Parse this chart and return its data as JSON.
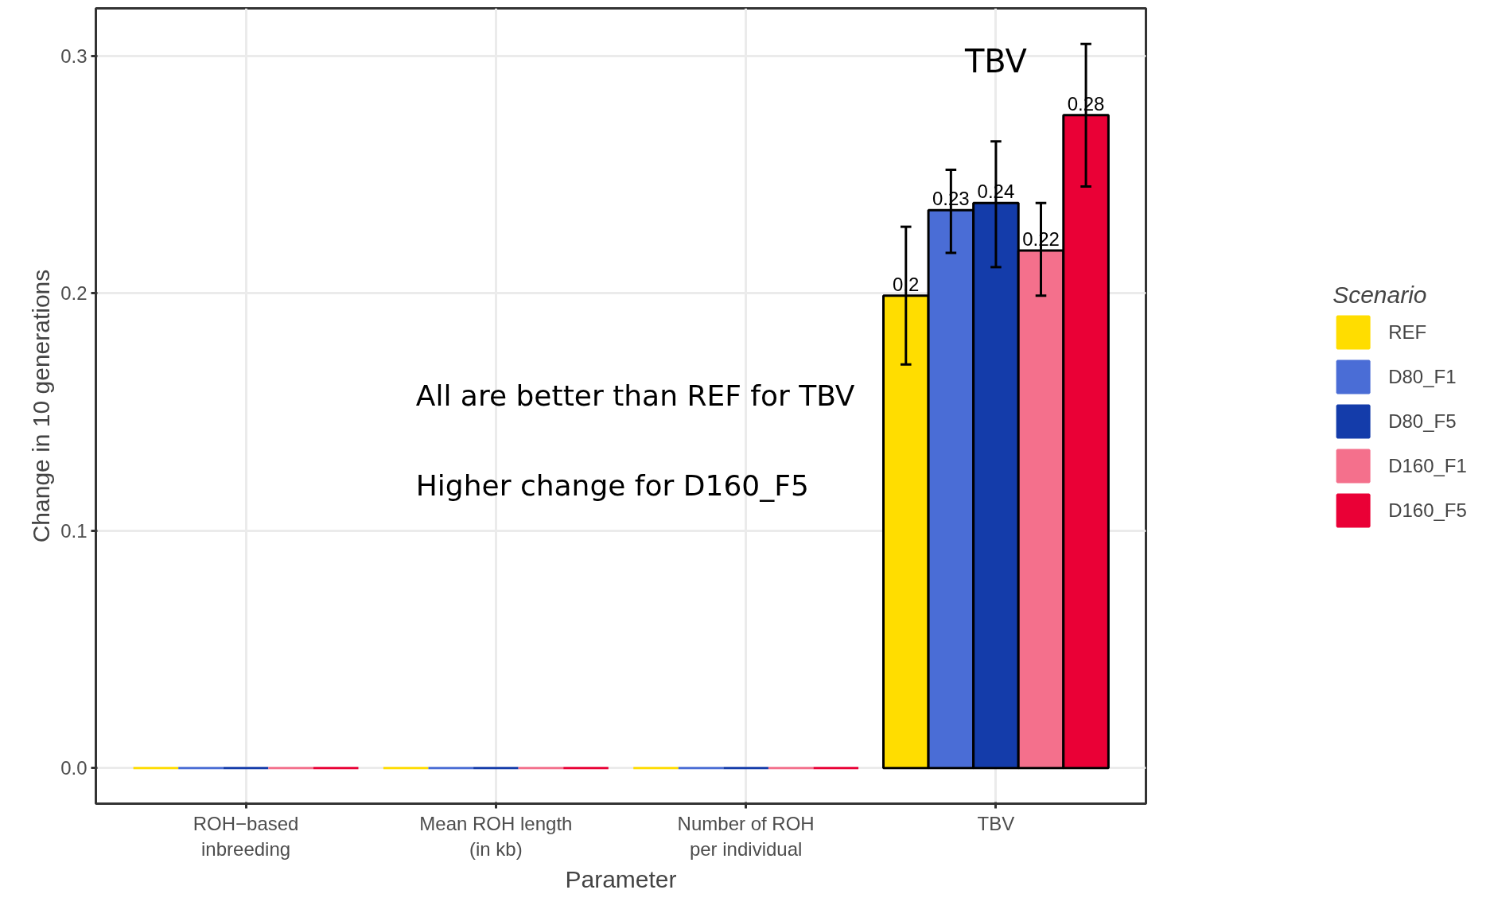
{
  "chart_data": {
    "type": "bar",
    "xlabel": "Parameter",
    "ylabel": "Change in 10 generations",
    "legend_title": "Scenario",
    "categories": [
      "ROH−based\ninbreeding",
      "Mean ROH length\n(in kb)",
      "Number of ROH\nper individual",
      "TBV"
    ],
    "series": [
      {
        "name": "REF",
        "color": "#ffdd00",
        "values": [
          0,
          0,
          0,
          0.199
        ],
        "errors": [
          null,
          null,
          null,
          [
            0.17,
            0.228
          ]
        ],
        "value_labels": [
          null,
          null,
          null,
          "0.2"
        ]
      },
      {
        "name": "D80_F1",
        "color": "#4a6dd6",
        "values": [
          0,
          0,
          0,
          0.235
        ],
        "errors": [
          null,
          null,
          null,
          [
            0.217,
            0.252
          ]
        ],
        "value_labels": [
          null,
          null,
          null,
          "0.23"
        ]
      },
      {
        "name": "D80_F5",
        "color": "#143caa",
        "values": [
          0,
          0,
          0,
          0.238
        ],
        "errors": [
          null,
          null,
          null,
          [
            0.211,
            0.264
          ]
        ],
        "value_labels": [
          null,
          null,
          null,
          "0.24"
        ]
      },
      {
        "name": "D160_F1",
        "color": "#f4708c",
        "values": [
          0,
          0,
          0,
          0.218
        ],
        "errors": [
          null,
          null,
          null,
          [
            0.199,
            0.238
          ]
        ],
        "value_labels": [
          null,
          null,
          null,
          "0.22"
        ]
      },
      {
        "name": "D160_F5",
        "color": "#ea0036",
        "values": [
          0,
          0,
          0,
          0.275
        ],
        "errors": [
          null,
          null,
          null,
          [
            0.245,
            0.305
          ]
        ],
        "value_labels": [
          null,
          null,
          null,
          "0.28"
        ]
      }
    ],
    "annotations": [
      "TBV",
      "All are better than REF for TBV",
      "Higher change for D160_F5"
    ],
    "ylim": [
      -0.015,
      0.32
    ],
    "yticks": [
      {
        "value": 0,
        "label": "0.0"
      },
      0.1,
      0.2,
      0.3
    ],
    "grid": true,
    "legend": "right"
  }
}
